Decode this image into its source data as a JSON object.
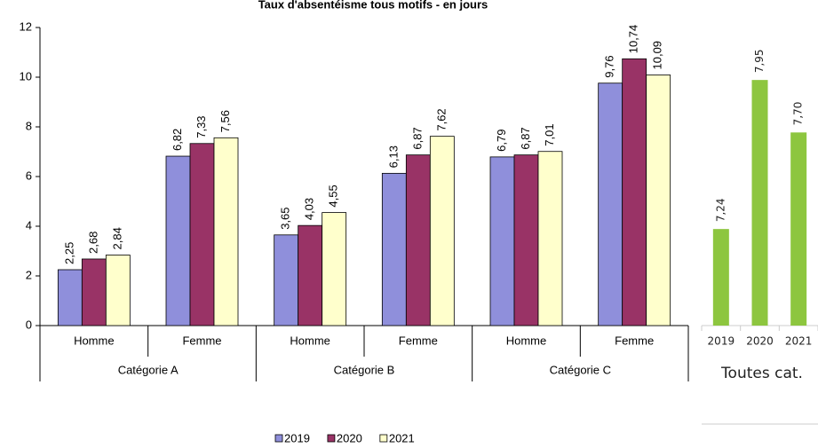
{
  "chart_data": [
    {
      "type": "bar",
      "title": "Taux d'absentéisme tous motifs - en jours",
      "categories": [
        "Homme",
        "Femme",
        "Homme",
        "Femme",
        "Homme",
        "Femme"
      ],
      "groups": [
        "Catégorie A",
        "Catégorie B",
        "Catégorie C"
      ],
      "series": [
        {
          "name": "2019",
          "color": "#8f8fdb",
          "values": [
            2.25,
            6.82,
            3.65,
            6.13,
            6.79,
            9.76
          ],
          "value_labels": [
            "2,25",
            "6,82",
            "3,65",
            "6,13",
            "6,79",
            "9,76"
          ]
        },
        {
          "name": "2020",
          "color": "#993366",
          "values": [
            2.68,
            7.33,
            4.03,
            6.87,
            6.87,
            10.74
          ],
          "value_labels": [
            "2,68",
            "7,33",
            "4,03",
            "6,87",
            "6,87",
            "10,74"
          ]
        },
        {
          "name": "2021",
          "color": "#ffffcc",
          "values": [
            2.84,
            7.56,
            4.55,
            7.62,
            7.01,
            10.09
          ],
          "value_labels": [
            "2,84",
            "7,56",
            "4,55",
            "7,62",
            "7,01",
            "10,09"
          ]
        }
      ],
      "ylim": [
        0,
        12
      ],
      "yticks": [
        0,
        2,
        4,
        6,
        8,
        10,
        12
      ],
      "legend": "bottom"
    },
    {
      "type": "bar",
      "categories": [
        "2019",
        "2020",
        "2021"
      ],
      "values": [
        7.24,
        7.95,
        7.7
      ],
      "value_labels": [
        "7,24",
        "7,95",
        "7,70"
      ],
      "color": "#8dc63f",
      "group": "Toutes cat.",
      "ylim": [
        6.78,
        8.2
      ]
    }
  ]
}
